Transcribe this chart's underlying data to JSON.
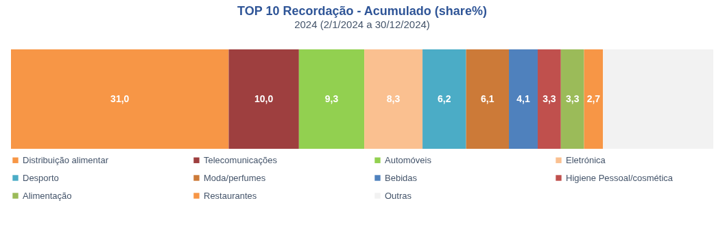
{
  "chart_data": {
    "type": "bar",
    "title": "TOP 10 Recordação - Acumulado (share%)",
    "subtitle": "2024 (2/1/2024 a 30/12/2024)",
    "orientation": "horizontal",
    "stacked": true,
    "categories": [
      null
    ],
    "xlim": [
      0,
      100
    ],
    "tick_labels": false,
    "legend": "bottom",
    "series": [
      {
        "name": "Distribuição alimentar",
        "color": "#f79646",
        "values": [
          31.0
        ],
        "value_labels": [
          "31,0"
        ]
      },
      {
        "name": "Telecomunicações",
        "color": "#9e3f3f",
        "values": [
          10.0
        ],
        "value_labels": [
          "10,0"
        ]
      },
      {
        "name": "Automóveis",
        "color": "#92d050",
        "values": [
          9.3
        ],
        "value_labels": [
          "9,3"
        ]
      },
      {
        "name": "Eletrónica",
        "color": "#fac090",
        "values": [
          8.3
        ],
        "value_labels": [
          "8,3"
        ]
      },
      {
        "name": "Desporto",
        "color": "#4bacc6",
        "values": [
          6.2
        ],
        "value_labels": [
          "6,2"
        ]
      },
      {
        "name": "Moda/perfumes",
        "color": "#cc7a38",
        "values": [
          6.1
        ],
        "value_labels": [
          "6,1"
        ]
      },
      {
        "name": "Bebidas",
        "color": "#4f81bd",
        "values": [
          4.1
        ],
        "value_labels": [
          "4,1"
        ]
      },
      {
        "name": "Higiene Pessoal/cosmética",
        "color": "#c0504d",
        "values": [
          3.3
        ],
        "value_labels": [
          "3,3"
        ]
      },
      {
        "name": "Alimentação",
        "color": "#9bbb59",
        "values": [
          3.3
        ],
        "value_labels": [
          "3,3"
        ]
      },
      {
        "name": "Restaurantes",
        "color": "#f79646",
        "values": [
          2.7
        ],
        "value_labels": [
          "2,7"
        ]
      },
      {
        "name": "Outras",
        "color": "#f2f2f2",
        "values": [
          15.7
        ],
        "value_labels": [
          null
        ]
      }
    ]
  }
}
